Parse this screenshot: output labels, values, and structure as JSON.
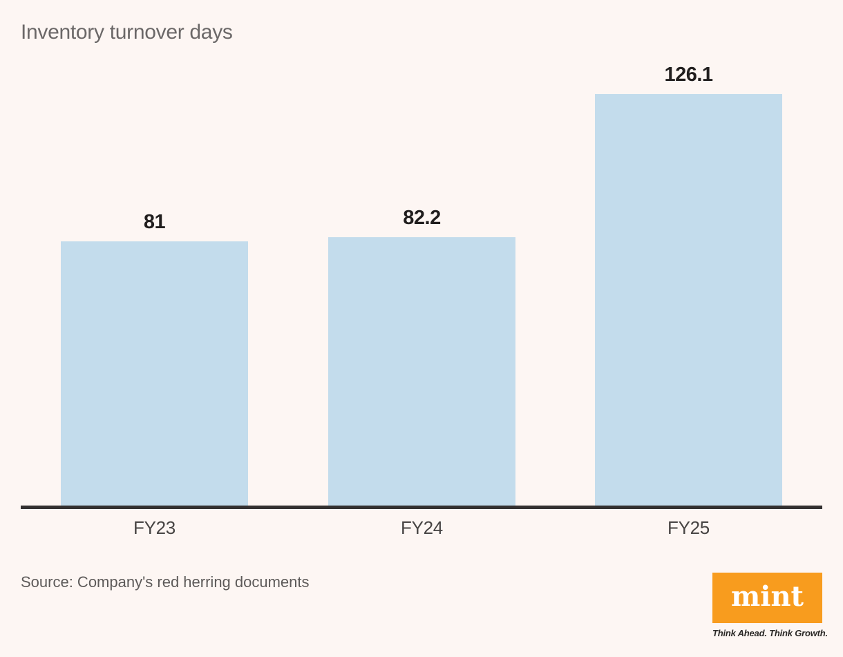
{
  "chart_data": {
    "type": "bar",
    "title": "Inventory turnover days",
    "categories": [
      "FY23",
      "FY24",
      "FY25"
    ],
    "values": [
      81,
      82.2,
      126.1
    ],
    "value_labels": [
      "81",
      "82.2",
      "126.1"
    ],
    "xlabel": "",
    "ylabel": "",
    "ylim": [
      0,
      126.1
    ],
    "grid": false,
    "legend": false,
    "colors": {
      "background": "#fdf6f3",
      "bar": "#c3dcec",
      "axis_line": "#333030",
      "title": "#6b6868",
      "value_label": "#211e1e",
      "category_label": "#474443"
    }
  },
  "source": {
    "text": "Source: Company's red herring documents"
  },
  "logo": {
    "text": "mint",
    "tagline": "Think Ahead. Think Growth.",
    "colors": {
      "box": "#f89c1e",
      "text": "#ffffff",
      "tagline": "#2b2927"
    }
  }
}
